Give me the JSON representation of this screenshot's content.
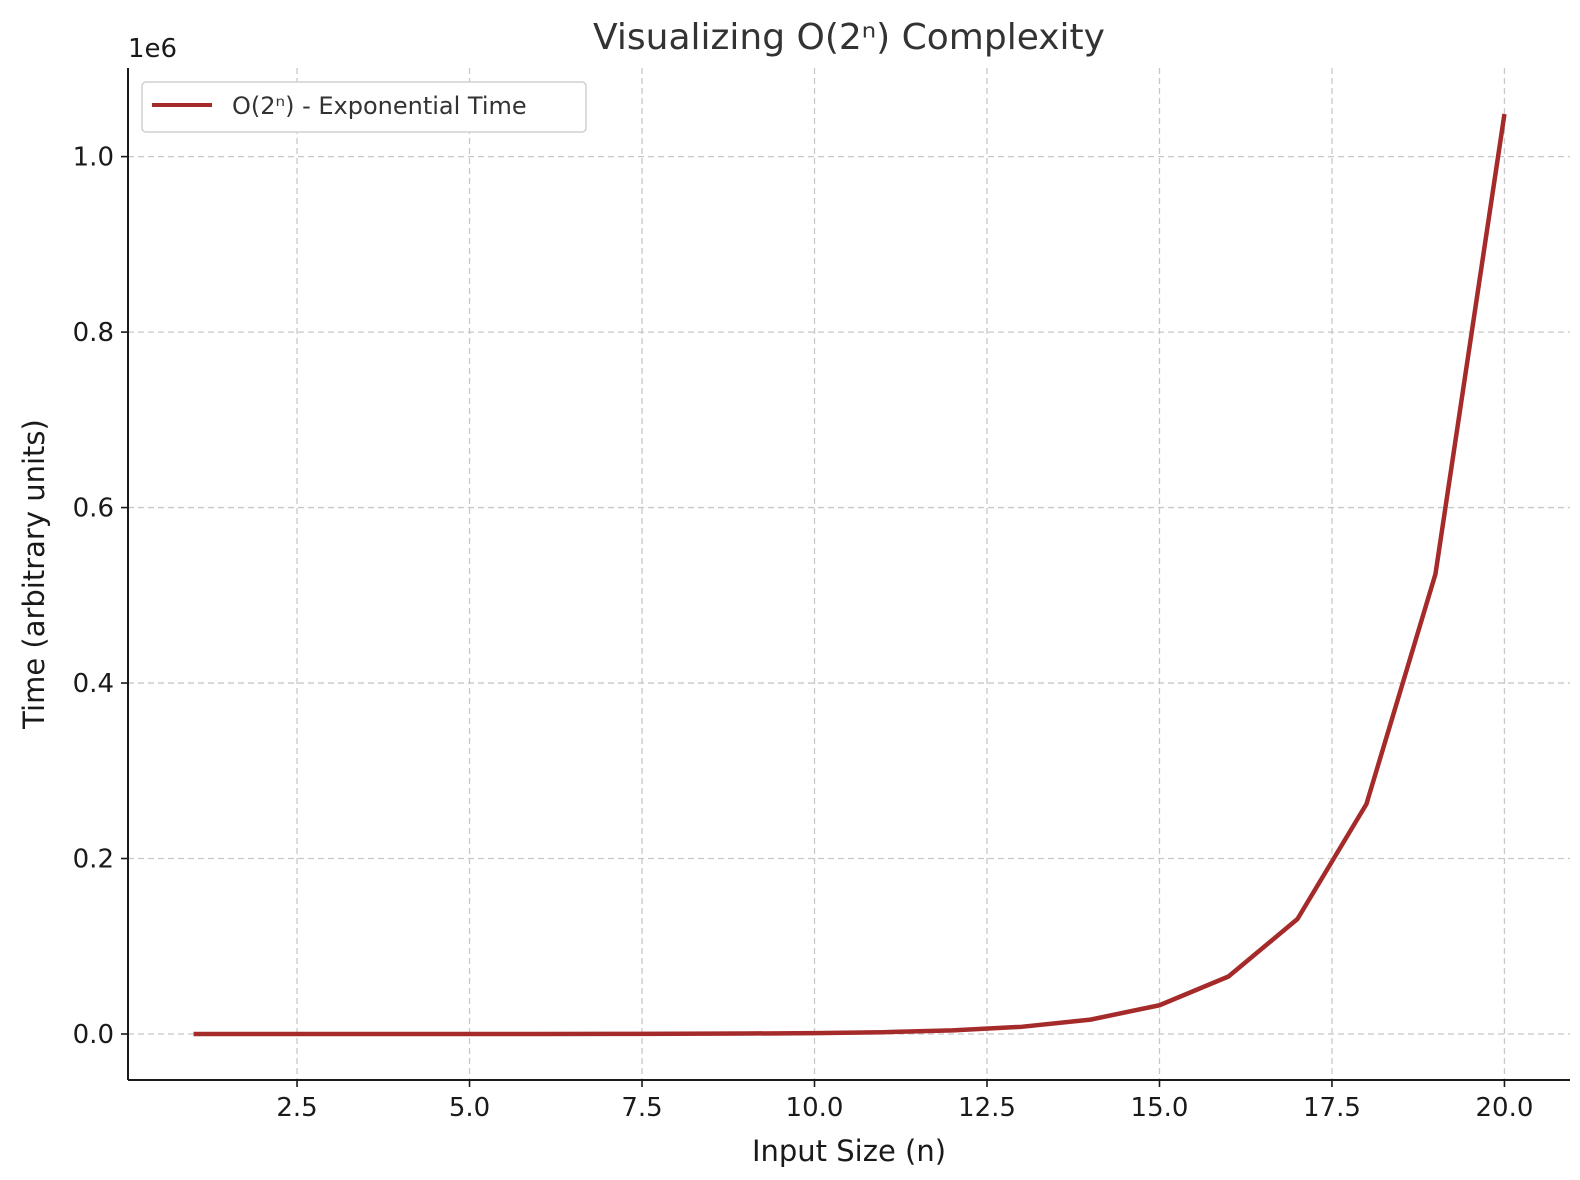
{
  "chart_data": {
    "type": "line",
    "title": "Visualizing O(2ⁿ) Complexity",
    "xlabel": "Input Size (n)",
    "ylabel": "Time (arbitrary units)",
    "y_offset_label": "1e6",
    "xlim": [
      0.05,
      20.95
    ],
    "ylim": [
      -52428.75,
      1101003.75
    ],
    "x_ticks": [
      2.5,
      5.0,
      7.5,
      10.0,
      12.5,
      15.0,
      17.5,
      20.0
    ],
    "x_tick_labels": [
      "2.5",
      "5.0",
      "7.5",
      "10.0",
      "12.5",
      "15.0",
      "17.5",
      "20.0"
    ],
    "y_ticks": [
      0,
      200000,
      400000,
      600000,
      800000,
      1000000
    ],
    "y_tick_labels": [
      "0.0",
      "0.2",
      "0.4",
      "0.6",
      "0.8",
      "1.0"
    ],
    "grid": true,
    "legend_position": "top-left",
    "series": [
      {
        "name": "O(2ⁿ) - Exponential Time",
        "color": "#a52a2a",
        "x": [
          1,
          2,
          3,
          4,
          5,
          6,
          7,
          8,
          9,
          10,
          11,
          12,
          13,
          14,
          15,
          16,
          17,
          18,
          19,
          20
        ],
        "y": [
          2,
          4,
          8,
          16,
          32,
          64,
          128,
          256,
          512,
          1024,
          2048,
          4096,
          8192,
          16384,
          32768,
          65536,
          131072,
          262144,
          524288,
          1048576
        ]
      }
    ]
  }
}
